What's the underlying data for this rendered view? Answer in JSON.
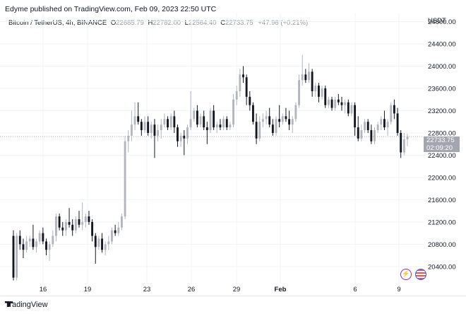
{
  "header": {
    "publisher_line": "Edyme published on TradingView.com, Feb 09, 2023 22:50 UTC"
  },
  "legend": {
    "symbol": "Bitcoin / TetherUS, 4h, BINANCE",
    "o_label": "O",
    "o_value": "22685.79",
    "h_label": "H",
    "h_value": "22782.00",
    "l_label": "L",
    "l_value": "22564.40",
    "c_label": "C",
    "c_value": "22733.75",
    "change": "+47.96 (+0.21%)"
  },
  "price_axis": {
    "currency": "USDT",
    "current_price": "22733.75",
    "countdown": "02:09:20"
  },
  "footer": {
    "brand": "TradingView"
  },
  "icons": {
    "bolt": "lightning-icon",
    "flag": "us-flag-icon",
    "logo": "tradingview-logo-icon"
  },
  "colors": {
    "up": "#b2b5be",
    "down": "#131722",
    "grid": "#f0f3fa",
    "price_tag": "#a3a6af"
  },
  "chart_data": {
    "type": "candlestick",
    "title": "Bitcoin / TetherUS, 4h, BINANCE",
    "x_ticks": [
      "16",
      "19",
      "23",
      "26",
      "29",
      "Feb",
      "6",
      "9"
    ],
    "y_ticks": [
      20400,
      20800,
      21200,
      21600,
      22000,
      22400,
      22800,
      23200,
      23600,
      24000,
      24400,
      24800
    ],
    "ylim": [
      20080,
      24960
    ],
    "grid": true,
    "candles": [
      [
        20950,
        21050,
        20150,
        20200
      ],
      [
        20200,
        21000,
        20150,
        20950
      ],
      [
        20950,
        21050,
        20700,
        20800
      ],
      [
        20800,
        20900,
        20550,
        20700
      ],
      [
        20700,
        20950,
        20650,
        20850
      ],
      [
        20850,
        20950,
        20750,
        20900
      ],
      [
        20900,
        21150,
        20700,
        20750
      ],
      [
        20750,
        20900,
        20650,
        20850
      ],
      [
        20850,
        21050,
        20800,
        21000
      ],
      [
        21000,
        21100,
        20800,
        20850
      ],
      [
        20850,
        20900,
        20600,
        20700
      ],
      [
        20700,
        20850,
        20500,
        20800
      ],
      [
        20800,
        21050,
        20750,
        20950
      ],
      [
        20950,
        21350,
        20850,
        21300
      ],
      [
        21300,
        21350,
        21050,
        21100
      ],
      [
        21100,
        21200,
        20950,
        21050
      ],
      [
        21050,
        21250,
        20950,
        21200
      ],
      [
        21200,
        21450,
        21100,
        21150
      ],
      [
        21150,
        21250,
        20950,
        21050
      ],
      [
        21050,
        21300,
        21000,
        21250
      ],
      [
        21250,
        21400,
        21100,
        21150
      ],
      [
        21150,
        21550,
        21050,
        21200
      ],
      [
        21200,
        21350,
        21100,
        21300
      ],
      [
        21300,
        21400,
        21150,
        21200
      ],
      [
        21200,
        21250,
        20850,
        20950
      ],
      [
        20950,
        21000,
        20450,
        20750
      ],
      [
        20750,
        20950,
        20700,
        20900
      ],
      [
        20900,
        21000,
        20650,
        20700
      ],
      [
        20700,
        20850,
        20600,
        20800
      ],
      [
        20800,
        20950,
        20700,
        20850
      ],
      [
        20850,
        21100,
        20800,
        21050
      ],
      [
        21050,
        21150,
        20950,
        21000
      ],
      [
        21000,
        21200,
        20950,
        21100
      ],
      [
        21100,
        21350,
        21050,
        21300
      ],
      [
        21300,
        22750,
        21250,
        22650
      ],
      [
        22650,
        22850,
        22450,
        22750
      ],
      [
        22750,
        23200,
        22650,
        22950
      ],
      [
        22950,
        23350,
        22850,
        23100
      ],
      [
        23100,
        23350,
        22950,
        23000
      ],
      [
        23000,
        23050,
        22750,
        22850
      ],
      [
        22850,
        23100,
        22800,
        23000
      ],
      [
        23000,
        23100,
        22750,
        22800
      ],
      [
        22800,
        23000,
        22700,
        22950
      ],
      [
        22950,
        23050,
        22350,
        22750
      ],
      [
        22750,
        22950,
        22650,
        22850
      ],
      [
        22850,
        23050,
        22700,
        22950
      ],
      [
        22950,
        23150,
        22900,
        23050
      ],
      [
        23050,
        23100,
        22850,
        22900
      ],
      [
        22900,
        23150,
        22850,
        23100
      ],
      [
        23100,
        23200,
        22800,
        22900
      ],
      [
        22900,
        22950,
        22550,
        22650
      ],
      [
        22650,
        22800,
        22550,
        22750
      ],
      [
        22750,
        22850,
        22400,
        22700
      ],
      [
        22700,
        22950,
        22600,
        22900
      ],
      [
        22900,
        23550,
        22850,
        23050
      ],
      [
        23050,
        23250,
        23000,
        23200
      ],
      [
        23200,
        23300,
        22900,
        22950
      ],
      [
        22950,
        23150,
        22900,
        23100
      ],
      [
        23100,
        23200,
        22850,
        22900
      ],
      [
        22900,
        23000,
        22600,
        22850
      ],
      [
        22850,
        23250,
        22800,
        23200
      ],
      [
        23200,
        23300,
        22850,
        22900
      ],
      [
        22900,
        23000,
        22800,
        22950
      ],
      [
        22950,
        23050,
        22850,
        22900
      ],
      [
        22900,
        23100,
        22850,
        23050
      ],
      [
        23050,
        23100,
        22850,
        22900
      ],
      [
        22900,
        23000,
        22850,
        22950
      ],
      [
        22950,
        23500,
        22900,
        23400
      ],
      [
        23400,
        23650,
        23300,
        23550
      ],
      [
        23550,
        23950,
        23450,
        23850
      ],
      [
        23850,
        24000,
        23700,
        23800
      ],
      [
        23800,
        23850,
        23300,
        23450
      ],
      [
        23450,
        23550,
        23200,
        23300
      ],
      [
        23300,
        23350,
        22950,
        23000
      ],
      [
        23000,
        23150,
        22600,
        22700
      ],
      [
        22700,
        23100,
        22650,
        23000
      ],
      [
        23000,
        23150,
        22900,
        23050
      ],
      [
        23050,
        23200,
        22950,
        23100
      ],
      [
        23100,
        23250,
        22900,
        22950
      ],
      [
        22950,
        23050,
        22750,
        22800
      ],
      [
        22800,
        23100,
        22750,
        23050
      ],
      [
        23050,
        23300,
        22900,
        23000
      ],
      [
        23000,
        23150,
        22950,
        23100
      ],
      [
        23100,
        23250,
        23000,
        23050
      ],
      [
        23050,
        23200,
        22850,
        22950
      ],
      [
        22950,
        23100,
        22800,
        23050
      ],
      [
        23050,
        23350,
        23000,
        23300
      ],
      [
        23300,
        23850,
        23250,
        23750
      ],
      [
        23750,
        24200,
        23650,
        23850
      ],
      [
        23850,
        23950,
        23700,
        23750
      ],
      [
        23750,
        24050,
        23700,
        23900
      ],
      [
        23900,
        23950,
        23450,
        23550
      ],
      [
        23550,
        23700,
        23450,
        23650
      ],
      [
        23650,
        23700,
        23350,
        23450
      ],
      [
        23450,
        23650,
        23400,
        23600
      ],
      [
        23600,
        23650,
        23250,
        23300
      ],
      [
        23300,
        23450,
        23250,
        23400
      ],
      [
        23400,
        23450,
        23200,
        23250
      ],
      [
        23250,
        23450,
        23200,
        23400
      ],
      [
        23400,
        23500,
        23300,
        23350
      ],
      [
        23350,
        23450,
        23200,
        23300
      ],
      [
        23300,
        23400,
        23150,
        23350
      ],
      [
        23350,
        23400,
        23100,
        23150
      ],
      [
        23150,
        23350,
        23100,
        23300
      ],
      [
        23300,
        23350,
        22750,
        22900
      ],
      [
        22900,
        23100,
        22650,
        22700
      ],
      [
        22700,
        22950,
        22650,
        22850
      ],
      [
        22850,
        23050,
        22800,
        23000
      ],
      [
        23000,
        23050,
        22800,
        22850
      ],
      [
        22850,
        22950,
        22600,
        22650
      ],
      [
        22650,
        22900,
        22600,
        22850
      ],
      [
        22850,
        23000,
        22800,
        22950
      ],
      [
        22950,
        23100,
        22850,
        23050
      ],
      [
        23050,
        23200,
        22850,
        22900
      ],
      [
        22900,
        23050,
        22750,
        23000
      ],
      [
        23000,
        23350,
        22950,
        23300
      ],
      [
        23300,
        23400,
        23050,
        23150
      ],
      [
        23150,
        23250,
        22750,
        22800
      ],
      [
        22800,
        22850,
        22350,
        22450
      ],
      [
        22450,
        22800,
        22400,
        22686
      ],
      [
        22686,
        22782,
        22564,
        22734
      ]
    ]
  }
}
